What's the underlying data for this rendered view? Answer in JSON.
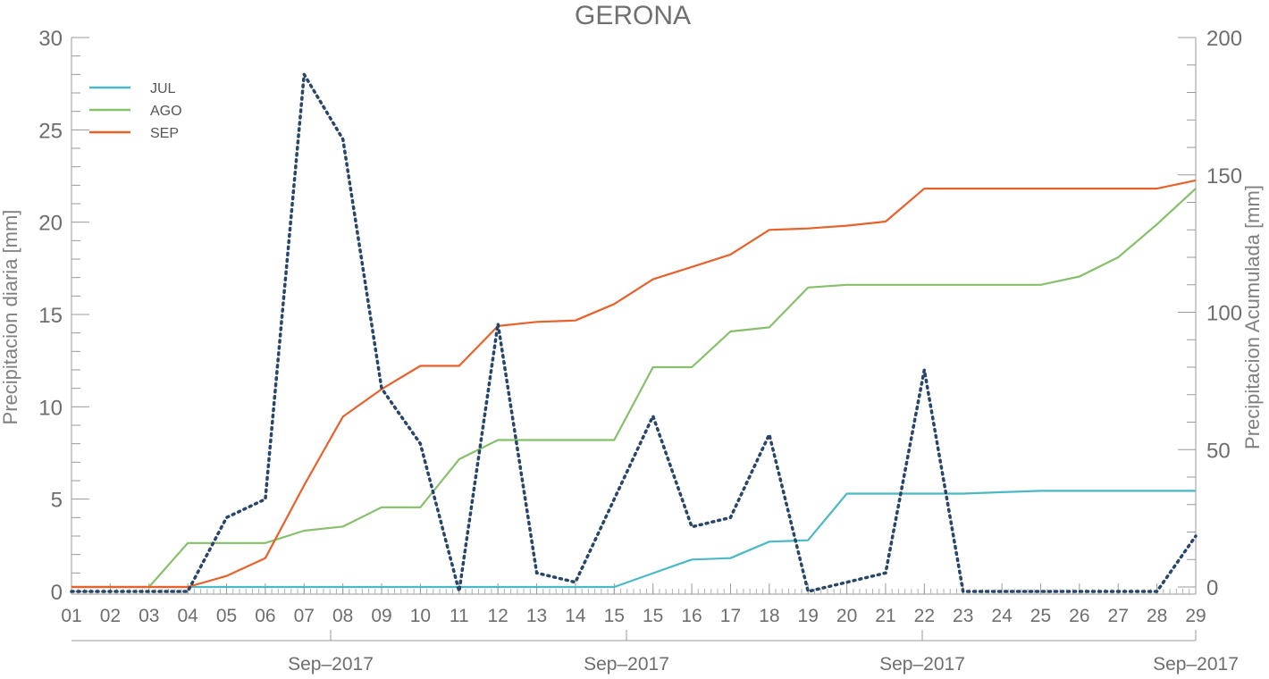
{
  "chart_data": {
    "type": "line",
    "title": "GERONA",
    "ylabel_left": "Precipitacion diaria [mm]",
    "ylabel_right": "Precipitacion Acumulada [mm]",
    "ylim_left": [
      0,
      30
    ],
    "ylim_right": [
      0,
      200
    ],
    "yticks_left": [
      "0",
      "5",
      "10",
      "15",
      "20",
      "25",
      "30"
    ],
    "yticks_right": [
      "0",
      "50",
      "100",
      "150",
      "200"
    ],
    "x_tick_labels": [
      "01",
      "02",
      "03",
      "04",
      "05",
      "06",
      "07",
      "08",
      "09",
      "10",
      "11",
      "12",
      "13",
      "14",
      "15",
      "15",
      "16",
      "17",
      "18",
      "19",
      "20",
      "21",
      "22",
      "23",
      "24",
      "25",
      "26",
      "27",
      "28",
      "29"
    ],
    "x_month_labels": [
      "Sep–2017",
      "Sep–2017",
      "Sep–2017",
      "Sep–2017"
    ],
    "legend_position": "top-left",
    "legend": [
      {
        "name": "JUL",
        "color": "#4bb8c8"
      },
      {
        "name": "AGO",
        "color": "#86c06a"
      },
      {
        "name": "SEP",
        "color": "#e8612a"
      }
    ],
    "daily": {
      "axis": "left",
      "style": "dotted",
      "color": "#27466a",
      "values": [
        0,
        0,
        0,
        0,
        4,
        5,
        28,
        24.5,
        11,
        8,
        0,
        14.5,
        1,
        0.5,
        5,
        9.5,
        3.5,
        4,
        8.5,
        0,
        0.5,
        1,
        12,
        0,
        0,
        0,
        0,
        0,
        0,
        3
      ]
    },
    "series": [
      {
        "name": "JUL",
        "axis": "right",
        "values": [
          0,
          0,
          0,
          0,
          0,
          0,
          0,
          0,
          0,
          0,
          0,
          0,
          0,
          0,
          0,
          5,
          10,
          10.5,
          16.5,
          17,
          34,
          34,
          34,
          34,
          34.5,
          35,
          35,
          35,
          35,
          35
        ]
      },
      {
        "name": "AGO",
        "axis": "right",
        "values": [
          0,
          0,
          0,
          16,
          16,
          16,
          20.5,
          22,
          29,
          29,
          46.5,
          53.5,
          53.5,
          53.5,
          53.5,
          80,
          80,
          93,
          94.5,
          109,
          110,
          110,
          110,
          110,
          110,
          110,
          113,
          120,
          132,
          145
        ]
      },
      {
        "name": "SEP",
        "axis": "right",
        "values": [
          0,
          0,
          0,
          0,
          4,
          10.5,
          37,
          62,
          72,
          80.5,
          80.5,
          95,
          96.5,
          97,
          103,
          112,
          116.5,
          121,
          130,
          130.5,
          131.5,
          133,
          145,
          145,
          145,
          145,
          145,
          145,
          145,
          148
        ]
      }
    ]
  }
}
